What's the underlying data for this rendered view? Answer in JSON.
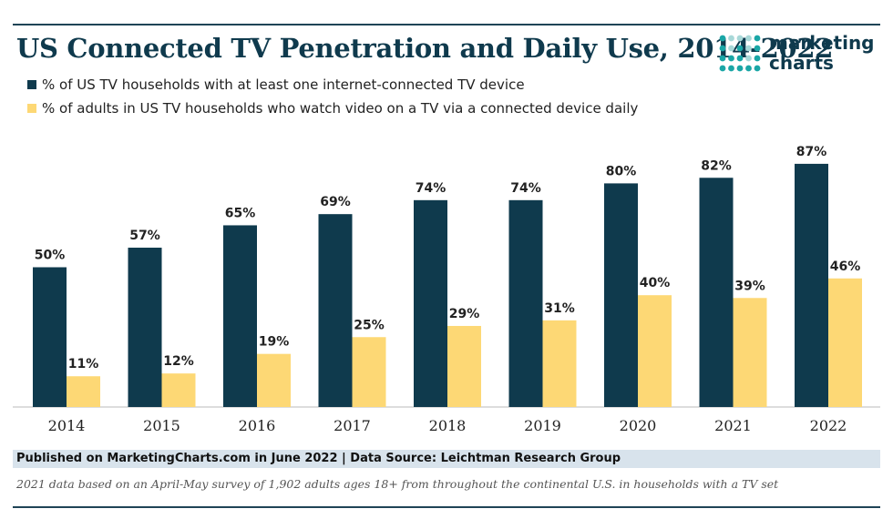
{
  "header": {
    "title": "US Connected TV Penetration and Daily Use, 2014-2022",
    "logo_line1": "marketing",
    "logo_line2": "charts"
  },
  "colors": {
    "series1": "#0f3a4d",
    "series2": "#fdd875",
    "logo_teal": "#1aa6a6",
    "logo_light": "#a8d8d8"
  },
  "chart_data": {
    "type": "bar",
    "categories": [
      "2014",
      "2015",
      "2016",
      "2017",
      "2018",
      "2019",
      "2020",
      "2021",
      "2022"
    ],
    "series": [
      {
        "name": "% of US TV households with at least one internet-connected TV device",
        "values": [
          50,
          57,
          65,
          69,
          74,
          74,
          80,
          82,
          87
        ]
      },
      {
        "name": "% of adults in US TV households who watch video on a TV via a connected device daily",
        "values": [
          11,
          12,
          19,
          25,
          29,
          31,
          40,
          39,
          46
        ]
      }
    ],
    "ylim": [
      0,
      100
    ],
    "value_suffix": "%",
    "grid": false,
    "legend": "top-left"
  },
  "footer": {
    "source": "Published on MarketingCharts.com in June 2022 | Data Source: Leichtman Research Group",
    "note": "2021 data based on an April-May survey of 1,902 adults ages 18+ from throughout the continental U.S. in households with a TV set"
  }
}
